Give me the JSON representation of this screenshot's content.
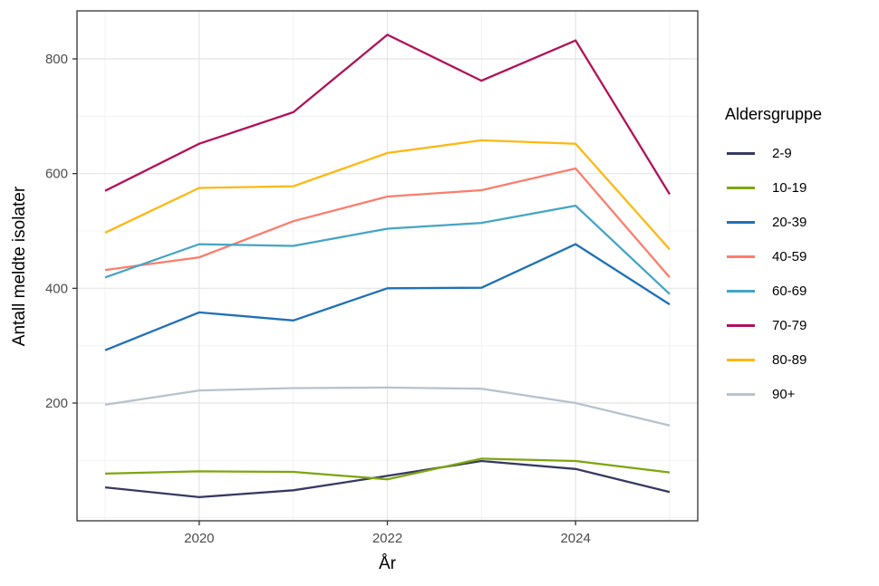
{
  "chart_data": {
    "type": "line",
    "title": "",
    "xlabel": "År",
    "ylabel": "Antall meldte isolater",
    "legend_title": "Aldersgruppe",
    "legend_position": "right",
    "grid": "on",
    "x": [
      2019,
      2020,
      2021,
      2022,
      2023,
      2024,
      2025
    ],
    "x_tick_values": [
      2020,
      2022,
      2024
    ],
    "x_tick_labels": [
      "2020",
      "2022",
      "2024"
    ],
    "x_minor_ticks": [
      2019,
      2021,
      2023,
      2025
    ],
    "y_tick_values": [
      200,
      400,
      600,
      800
    ],
    "y_tick_labels": [
      "200",
      "400",
      "600",
      "800"
    ],
    "y_minor_ticks": [
      0,
      100,
      300,
      500,
      700
    ],
    "xlim": [
      2018.7,
      2025.3
    ],
    "ylim": [
      -8,
      884
    ],
    "series": [
      {
        "name": "2-9",
        "color": "#363a60",
        "values": [
          53,
          36,
          48,
          73,
          99,
          85,
          45
        ]
      },
      {
        "name": "10-19",
        "color": "#7da60e",
        "values": [
          77,
          81,
          80,
          67,
          103,
          99,
          79
        ]
      },
      {
        "name": "20-39",
        "color": "#2171b5",
        "values": [
          292,
          358,
          344,
          400,
          401,
          477,
          372
        ]
      },
      {
        "name": "40-59",
        "color": "#fb7d6c",
        "values": [
          432,
          454,
          517,
          560,
          571,
          609,
          419
        ]
      },
      {
        "name": "60-69",
        "color": "#45a5c5",
        "values": [
          419,
          477,
          474,
          504,
          514,
          544,
          390
        ]
      },
      {
        "name": "70-79",
        "color": "#b0135a",
        "values": [
          570,
          652,
          707,
          842,
          762,
          832,
          564
        ]
      },
      {
        "name": "80-89",
        "color": "#fdb813",
        "values": [
          497,
          575,
          578,
          636,
          658,
          652,
          468
        ]
      },
      {
        "name": "90+",
        "color": "#b7c3cd",
        "values": [
          197,
          222,
          226,
          227,
          225,
          200,
          161
        ]
      }
    ]
  },
  "colors": {
    "background": "#ffffff",
    "panel_border": "#333333",
    "grid_major": "#e4e4e4",
    "grid_minor": "#f0f0f0",
    "tick_mark": "#333333",
    "tick_label_text": "#4d4d4d",
    "axis_title_text": "#000000"
  }
}
